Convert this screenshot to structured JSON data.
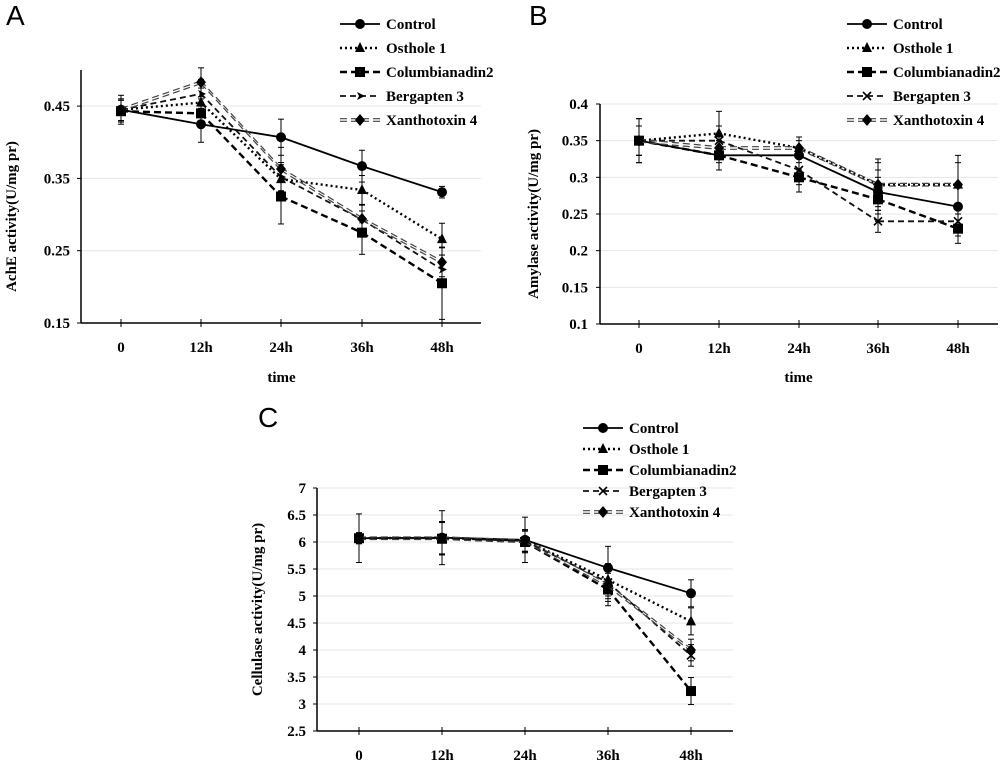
{
  "legend_items": [
    "Control",
    "Osthole 1",
    "Columbianadin2",
    "Bergapten 3",
    "Xanthotoxin 4"
  ],
  "chart_data": [
    {
      "panel": "A",
      "type": "line",
      "title": "",
      "xlabel": "time",
      "ylabel": "AchE activity(U/mg pr)",
      "categories": [
        "0",
        "12h",
        "24h",
        "36h",
        "48h"
      ],
      "yticks": [
        "0.15",
        "0.25",
        "0.35",
        "0.45"
      ],
      "ylim": [
        0.15,
        0.5
      ],
      "grid": true,
      "legend_position": "top-right",
      "series": [
        {
          "name": "Control",
          "style": "solid",
          "marker": "circle",
          "values": [
            0.445,
            0.425,
            0.407,
            0.367,
            0.331
          ],
          "errors": [
            0.02,
            0.025,
            0.025,
            0.022,
            0.008
          ]
        },
        {
          "name": "Osthole 1",
          "style": "dotted",
          "marker": "triangle",
          "values": [
            0.445,
            0.455,
            0.349,
            0.334,
            0.266
          ],
          "errors": [
            0.015,
            0.02,
            0.02,
            0.02,
            0.022
          ]
        },
        {
          "name": "Columbianadin2",
          "style": "dashed",
          "marker": "square",
          "values": [
            0.443,
            0.44,
            0.325,
            0.275,
            0.205
          ],
          "errors": [
            0.015,
            0.02,
            0.038,
            0.03,
            0.05
          ]
        },
        {
          "name": "Bergapten 3",
          "style": "dashed-light",
          "marker": "arrow",
          "values": [
            0.445,
            0.467,
            0.352,
            0.293,
            0.224
          ],
          "errors": [
            0.015,
            0.02,
            0.02,
            0.02,
            0.02
          ]
        },
        {
          "name": "Xanthotoxin 4",
          "style": "double",
          "marker": "diamond",
          "values": [
            0.445,
            0.483,
            0.363,
            0.294,
            0.234
          ],
          "errors": [
            0.015,
            0.02,
            0.03,
            0.02,
            0.02
          ]
        }
      ]
    },
    {
      "panel": "B",
      "type": "line",
      "title": "",
      "xlabel": "time",
      "ylabel": "Amylase activity(U/mg pr)",
      "categories": [
        "0",
        "12h",
        "24h",
        "36h",
        "48h"
      ],
      "yticks": [
        "0.1",
        "0.15",
        "0.2",
        "0.25",
        "0.3",
        "0.35",
        "0.4"
      ],
      "ylim": [
        0.1,
        0.4
      ],
      "grid": true,
      "legend_position": "top-right",
      "series": [
        {
          "name": "Control",
          "style": "solid",
          "marker": "circle",
          "values": [
            0.35,
            0.33,
            0.33,
            0.28,
            0.26
          ],
          "errors": [
            0.03,
            0.02,
            0.02,
            0.03,
            0.03
          ]
        },
        {
          "name": "Osthole 1",
          "style": "dotted",
          "marker": "triangle",
          "values": [
            0.35,
            0.36,
            0.34,
            0.29,
            0.29
          ],
          "errors": [
            0.03,
            0.03,
            0.015,
            0.035,
            0.04
          ]
        },
        {
          "name": "Columbianadin2",
          "style": "dashed",
          "marker": "square",
          "values": [
            0.35,
            0.33,
            0.3,
            0.27,
            0.23
          ],
          "errors": [
            0.02,
            0.02,
            0.02,
            0.03,
            0.02
          ]
        },
        {
          "name": "Bergapten 3",
          "style": "dashed-light",
          "marker": "x",
          "values": [
            0.35,
            0.35,
            0.31,
            0.24,
            0.24
          ],
          "errors": [
            0.02,
            0.02,
            0.02,
            0.015,
            0.02
          ]
        },
        {
          "name": "Xanthotoxin 4",
          "style": "double",
          "marker": "diamond",
          "values": [
            0.35,
            0.34,
            0.34,
            0.29,
            0.29
          ],
          "errors": [
            0.02,
            0.02,
            0.015,
            0.03,
            0.03
          ]
        }
      ]
    },
    {
      "panel": "C",
      "type": "line",
      "title": "",
      "xlabel": "",
      "ylabel": "Cellulase activity(U/mg pr)",
      "categories": [
        "0",
        "12h",
        "24h",
        "36h",
        "48h"
      ],
      "yticks": [
        "2.5",
        "3",
        "3.5",
        "4",
        "4.5",
        "5",
        "5.5",
        "6",
        "6.5",
        "7"
      ],
      "ylim": [
        2.5,
        7
      ],
      "grid": true,
      "legend_position": "top-right",
      "series": [
        {
          "name": "Control",
          "style": "solid",
          "marker": "circle",
          "values": [
            6.07,
            6.08,
            6.04,
            5.52,
            5.05
          ],
          "errors": [
            0.45,
            0.5,
            0.42,
            0.4,
            0.25
          ]
        },
        {
          "name": "Osthole 1",
          "style": "dotted",
          "marker": "triangle",
          "values": [
            6.07,
            6.08,
            6.03,
            5.3,
            4.53
          ],
          "errors": [
            0.1,
            0.3,
            0.2,
            0.3,
            0.25
          ]
        },
        {
          "name": "Columbianadin2",
          "style": "dashed",
          "marker": "square",
          "values": [
            6.07,
            6.06,
            6.0,
            5.12,
            3.24
          ],
          "errors": [
            0.1,
            0.3,
            0.2,
            0.3,
            0.25
          ]
        },
        {
          "name": "Bergapten 3",
          "style": "dashed-light",
          "marker": "x",
          "values": [
            6.07,
            6.07,
            6.02,
            5.25,
            3.9
          ],
          "errors": [
            0.1,
            0.3,
            0.2,
            0.3,
            0.2
          ]
        },
        {
          "name": "Xanthotoxin 4",
          "style": "double",
          "marker": "diamond",
          "values": [
            6.07,
            6.07,
            6.02,
            5.2,
            4.0
          ],
          "errors": [
            0.1,
            0.3,
            0.2,
            0.3,
            0.2
          ]
        }
      ]
    }
  ]
}
